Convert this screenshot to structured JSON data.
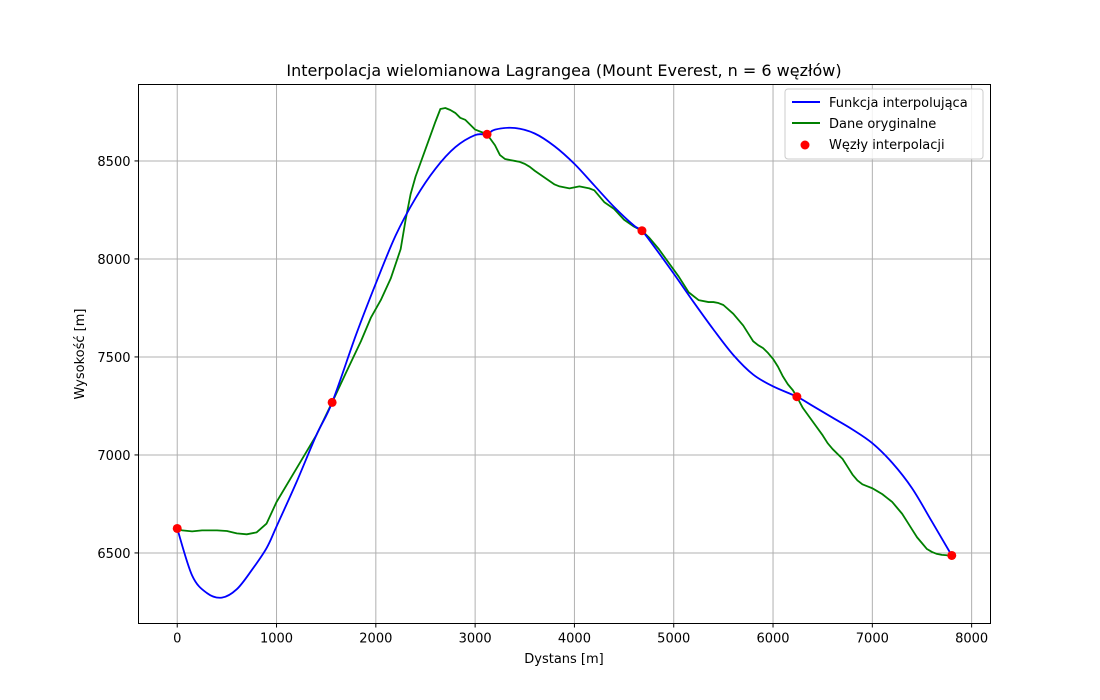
{
  "chart_data": {
    "type": "line",
    "title": "Interpolacja wielomianowa Lagrangea (Mount Everest, n = 6 węzłów)",
    "xlabel": "Dystans [m]",
    "ylabel": "Wysokość [m]",
    "xlim": [
      -390,
      8190
    ],
    "ylim": [
      6140,
      8890
    ],
    "x_ticks": [
      0,
      1000,
      2000,
      3000,
      4000,
      5000,
      6000,
      7000,
      8000
    ],
    "x_tick_labels": [
      "0",
      "1000",
      "2000",
      "3000",
      "4000",
      "5000",
      "6000",
      "7000",
      "8000"
    ],
    "y_ticks": [
      6500,
      7000,
      7500,
      8000,
      8500
    ],
    "y_tick_labels": [
      "6500",
      "7000",
      "7500",
      "8000",
      "8500"
    ],
    "grid": true,
    "legend_position": "top-right",
    "colors": {
      "interpolation": "#0000ff",
      "original": "#008000",
      "nodes": "#ff0000",
      "grid": "#b0b0b0",
      "axes": "#000000"
    },
    "nodes": {
      "x": [
        0,
        1560,
        3120,
        4680,
        6240,
        7800
      ],
      "y": [
        6625,
        7268,
        8636,
        8144,
        7297,
        6487
      ]
    },
    "series": [
      {
        "name": "Funkcja interpolująca",
        "kind": "line",
        "x": [
          0,
          150,
          300,
          450,
          600,
          750,
          900,
          1000,
          1200,
          1400,
          1560,
          1800,
          2000,
          2200,
          2400,
          2600,
          2800,
          3000,
          3120,
          3200,
          3400,
          3600,
          3800,
          4000,
          4200,
          4400,
          4600,
          4680,
          4800,
          5000,
          5200,
          5400,
          5600,
          5800,
          6000,
          6240,
          6400,
          6600,
          6800,
          7000,
          7200,
          7400,
          7600,
          7800
        ],
        "y": [
          6625,
          6385,
          6295,
          6272,
          6315,
          6412,
          6525,
          6635,
          6860,
          7100,
          7268,
          7612,
          7875,
          8120,
          8310,
          8460,
          8570,
          8632,
          8636,
          8660,
          8668,
          8640,
          8575,
          8485,
          8375,
          8265,
          8170,
          8144,
          8065,
          7925,
          7780,
          7640,
          7510,
          7410,
          7350,
          7297,
          7250,
          7190,
          7130,
          7060,
          6960,
          6830,
          6660,
          6487
        ]
      },
      {
        "name": "Dane oryginalne",
        "kind": "line",
        "x": [
          0,
          50,
          150,
          250,
          400,
          500,
          600,
          700,
          800,
          900,
          1000,
          1200,
          1400,
          1560,
          1700,
          1850,
          1950,
          2050,
          2150,
          2250,
          2300,
          2350,
          2400,
          2500,
          2600,
          2650,
          2700,
          2750,
          2800,
          2850,
          2900,
          3000,
          3100,
          3120,
          3200,
          3250,
          3300,
          3350,
          3400,
          3450,
          3500,
          3550,
          3600,
          3700,
          3800,
          3850,
          3900,
          3950,
          4000,
          4050,
          4100,
          4150,
          4200,
          4250,
          4300,
          4400,
          4500,
          4600,
          4680,
          4750,
          4850,
          4950,
          5050,
          5150,
          5250,
          5350,
          5400,
          5450,
          5500,
          5600,
          5700,
          5750,
          5800,
          5850,
          5900,
          5950,
          6000,
          6050,
          6100,
          6150,
          6200,
          6240,
          6300,
          6400,
          6500,
          6550,
          6600,
          6700,
          6750,
          6800,
          6850,
          6900,
          6950,
          7000,
          7050,
          7100,
          7150,
          7200,
          7250,
          7300,
          7350,
          7400,
          7450,
          7500,
          7550,
          7600,
          7650,
          7700,
          7750,
          7800
        ],
        "y": [
          6625,
          6615,
          6610,
          6615,
          6615,
          6612,
          6600,
          6595,
          6605,
          6650,
          6760,
          6930,
          7100,
          7268,
          7420,
          7580,
          7700,
          7790,
          7900,
          8050,
          8200,
          8330,
          8420,
          8560,
          8700,
          8765,
          8770,
          8760,
          8745,
          8720,
          8710,
          8660,
          8640,
          8636,
          8580,
          8530,
          8510,
          8505,
          8500,
          8495,
          8485,
          8470,
          8450,
          8415,
          8380,
          8370,
          8365,
          8360,
          8365,
          8370,
          8365,
          8360,
          8350,
          8320,
          8290,
          8255,
          8200,
          8165,
          8144,
          8110,
          8050,
          7980,
          7910,
          7830,
          7790,
          7780,
          7780,
          7775,
          7765,
          7720,
          7660,
          7620,
          7580,
          7560,
          7545,
          7520,
          7490,
          7450,
          7400,
          7360,
          7330,
          7297,
          7240,
          7170,
          7100,
          7060,
          7030,
          6980,
          6940,
          6900,
          6870,
          6850,
          6840,
          6830,
          6815,
          6800,
          6780,
          6760,
          6730,
          6700,
          6660,
          6620,
          6580,
          6550,
          6520,
          6505,
          6495,
          6490,
          6488,
          6487
        ]
      },
      {
        "name": "Węzły interpolacji",
        "kind": "scatter"
      }
    ]
  }
}
